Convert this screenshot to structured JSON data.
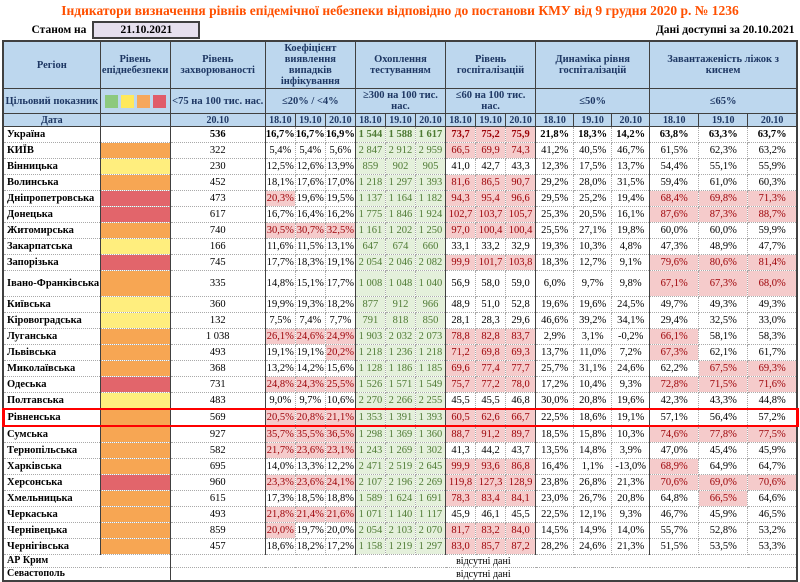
{
  "title": "Індикатори визначення рівнів епідемічної небезпеки відповідно до постанови КМУ від 9 грудня 2020 р. № 1236",
  "meta": {
    "as_of_label": "Станом на",
    "as_of_date": "21.10.2021",
    "available_text": "Дані доступні за  20.10.2021"
  },
  "colors": {
    "title": "#FF5000",
    "header_bg": "#BDD7EE",
    "header_text": "#1F3864",
    "level_orange": "#F7A653",
    "level_yellow": "#FFEE7E",
    "level_red": "#E2656B",
    "exceed_bg": "#F5CBCB",
    "exceed_text": "#9C0006",
    "good_bg": "#E4F0DB",
    "good_text": "#4E7A33",
    "highlight_border": "#FF0000"
  },
  "header": {
    "region_label": "Регіон",
    "target_label": "Цільовий показник",
    "date_label": "Дата",
    "level_group": {
      "name": "Рівень епіднебезпеки",
      "legend_colors": [
        "#8DC97E",
        "#FFE95C",
        "#F6A75C",
        "#E05C6A"
      ],
      "legend_names": [
        "green-level",
        "yellow-level",
        "orange-level",
        "red-level"
      ]
    },
    "groups": [
      {
        "name": "Рівень захворюваності",
        "target": "<75 на 100 тис. нас.",
        "dates": [
          "20.10"
        ]
      },
      {
        "name": "Коефіцієнт виявлення випадків інфікування",
        "target": "≤20% / <4%",
        "dates": [
          "18.10",
          "19.10",
          "20.10"
        ]
      },
      {
        "name": "Охоплення тестуванням",
        "target": "≥300 на 100 тис. нас.",
        "dates": [
          "18.10",
          "19.10",
          "20.10"
        ]
      },
      {
        "name": "Рівень госпіталізацій",
        "target": "≤60 на 100 тис. нас.",
        "dates": [
          "18.10",
          "19.10",
          "20.10"
        ]
      },
      {
        "name": "Динаміка рівня госпіталізацій",
        "target": "≤50%",
        "dates": [
          "18.10",
          "19.10",
          "20.10"
        ]
      },
      {
        "name": "Завантаженість ліжок з киснем",
        "target": "≤65%",
        "dates": [
          "18.10",
          "19.10",
          "20.10"
        ]
      }
    ]
  },
  "highlight_region": "Рівненська",
  "no_data_text": "відсутні дані",
  "rows": [
    {
      "region": "Україна",
      "bold": true,
      "level": "",
      "incidence": "536",
      "coef": [
        "16,7%",
        "16,7%",
        "16,9%"
      ],
      "test": [
        "1 544",
        "1 588",
        "1 617"
      ],
      "hosp": [
        "73,7",
        "75,2",
        "75,9"
      ],
      "hosp_f": "ppp",
      "dyn": [
        "21,8%",
        "18,3%",
        "14,2%"
      ],
      "beds": [
        "63,8%",
        "63,3%",
        "63,7%"
      ]
    },
    {
      "region": "КИЇВ",
      "level": "orange",
      "incidence": "322",
      "coef": [
        "5,4%",
        "5,4%",
        "5,6%"
      ],
      "test": [
        "2 847",
        "2 912",
        "2 959"
      ],
      "hosp": [
        "66,5",
        "69,9",
        "74,3"
      ],
      "hosp_f": "ppp",
      "dyn": [
        "41,2%",
        "40,5%",
        "46,7%"
      ],
      "beds": [
        "61,5%",
        "62,3%",
        "63,2%"
      ]
    },
    {
      "region": "Вінницька",
      "level": "yellow",
      "incidence": "230",
      "coef": [
        "12,5%",
        "12,6%",
        "13,9%"
      ],
      "test": [
        "859",
        "902",
        "905"
      ],
      "hosp": [
        "41,0",
        "42,7",
        "43,3"
      ],
      "dyn": [
        "12,3%",
        "17,5%",
        "13,7%"
      ],
      "beds": [
        "54,4%",
        "55,1%",
        "55,9%"
      ]
    },
    {
      "region": "Волинська",
      "level": "orange",
      "incidence": "452",
      "coef": [
        "18,1%",
        "17,6%",
        "17,0%"
      ],
      "test": [
        "1 218",
        "1 297",
        "1 393"
      ],
      "hosp": [
        "81,6",
        "86,5",
        "90,7"
      ],
      "hosp_f": "ppp",
      "dyn": [
        "29,2%",
        "28,0%",
        "31,5%"
      ],
      "beds": [
        "59,4%",
        "61,0%",
        "60,3%"
      ]
    },
    {
      "region": "Дніпропетровська",
      "level": "red",
      "incidence": "473",
      "coef": [
        "20,3%",
        "19,6%",
        "19,5%"
      ],
      "coef_f": "p..",
      "test": [
        "1 137",
        "1 164",
        "1 182"
      ],
      "hosp": [
        "94,3",
        "95,4",
        "96,6"
      ],
      "hosp_f": "ppp",
      "dyn": [
        "29,5%",
        "25,2%",
        "19,4%"
      ],
      "beds": [
        "68,4%",
        "69,8%",
        "71,3%"
      ],
      "beds_f": "ppp"
    },
    {
      "region": "Донецька",
      "level": "red",
      "incidence": "617",
      "coef": [
        "16,7%",
        "16,4%",
        "16,2%"
      ],
      "test": [
        "1 775",
        "1 846",
        "1 924"
      ],
      "hosp": [
        "102,7",
        "103,7",
        "105,7"
      ],
      "hosp_f": "ppp",
      "dyn": [
        "25,3%",
        "20,5%",
        "16,1%"
      ],
      "beds": [
        "87,6%",
        "87,3%",
        "88,7%"
      ],
      "beds_f": "ppp"
    },
    {
      "region": "Житомирська",
      "level": "orange",
      "incidence": "740",
      "coef": [
        "30,5%",
        "30,7%",
        "32,5%"
      ],
      "coef_f": "ppp",
      "test": [
        "1 161",
        "1 202",
        "1 250"
      ],
      "hosp": [
        "97,0",
        "100,4",
        "100,4"
      ],
      "hosp_f": "ppp",
      "dyn": [
        "25,5%",
        "27,1%",
        "19,8%"
      ],
      "beds": [
        "60,0%",
        "60,0%",
        "59,9%"
      ]
    },
    {
      "region": "Закарпатська",
      "level": "yellow",
      "incidence": "166",
      "coef": [
        "11,6%",
        "11,5%",
        "13,1%"
      ],
      "test": [
        "647",
        "674",
        "660"
      ],
      "hosp": [
        "33,1",
        "33,2",
        "32,9"
      ],
      "dyn": [
        "19,3%",
        "10,3%",
        "4,8%"
      ],
      "beds": [
        "47,3%",
        "48,9%",
        "47,7%"
      ]
    },
    {
      "region": "Запорізька",
      "level": "red",
      "incidence": "745",
      "coef": [
        "17,7%",
        "18,3%",
        "19,1%"
      ],
      "test": [
        "2 054",
        "2 046",
        "2 082"
      ],
      "hosp": [
        "99,9",
        "101,7",
        "103,8"
      ],
      "hosp_f": "ppp",
      "dyn": [
        "18,3%",
        "12,7%",
        "9,1%"
      ],
      "beds": [
        "79,6%",
        "80,6%",
        "81,4%"
      ],
      "beds_f": "ppp"
    },
    {
      "region": "Івано-Франківська",
      "level": "orange",
      "incidence": "335",
      "tall": true,
      "coef": [
        "14,8%",
        "15,1%",
        "17,7%"
      ],
      "test": [
        "1 008",
        "1 048",
        "1 040"
      ],
      "hosp": [
        "56,9",
        "58,0",
        "59,0"
      ],
      "dyn": [
        "6,0%",
        "9,7%",
        "9,8%"
      ],
      "beds": [
        "67,1%",
        "67,3%",
        "68,0%"
      ],
      "beds_f": "ppp"
    },
    {
      "region": "Київська",
      "level": "yellow",
      "incidence": "360",
      "coef": [
        "19,9%",
        "19,3%",
        "18,2%"
      ],
      "test": [
        "877",
        "912",
        "966"
      ],
      "hosp": [
        "48,9",
        "51,0",
        "52,8"
      ],
      "dyn": [
        "19,6%",
        "19,6%",
        "24,5%"
      ],
      "beds": [
        "49,7%",
        "49,3%",
        "49,3%"
      ]
    },
    {
      "region": "Кіровоградська",
      "level": "yellow",
      "incidence": "132",
      "coef": [
        "7,5%",
        "7,4%",
        "7,7%"
      ],
      "test": [
        "791",
        "818",
        "850"
      ],
      "hosp": [
        "28,1",
        "28,3",
        "29,6"
      ],
      "dyn": [
        "46,6%",
        "39,2%",
        "34,1%"
      ],
      "beds": [
        "29,4%",
        "32,5%",
        "33,0%"
      ]
    },
    {
      "region": "Луганська",
      "level": "orange",
      "incidence": "1 038",
      "coef": [
        "26,1%",
        "24,6%",
        "24,9%"
      ],
      "coef_f": "ppp",
      "test": [
        "1 903",
        "2 032",
        "2 073"
      ],
      "hosp": [
        "78,8",
        "82,8",
        "83,7"
      ],
      "hosp_f": "ppp",
      "dyn": [
        "2,9%",
        "3,1%",
        "-0,2%"
      ],
      "beds": [
        "66,1%",
        "58,1%",
        "58,3%"
      ],
      "beds_f": "p.."
    },
    {
      "region": "Львівська",
      "level": "orange",
      "incidence": "493",
      "coef": [
        "19,1%",
        "19,1%",
        "20,2%"
      ],
      "coef_f": "..p",
      "test": [
        "1 218",
        "1 236",
        "1 218"
      ],
      "hosp": [
        "71,2",
        "69,8",
        "69,3"
      ],
      "hosp_f": "ppp",
      "dyn": [
        "13,7%",
        "11,0%",
        "7,2%"
      ],
      "beds": [
        "67,3%",
        "62,1%",
        "61,7%"
      ],
      "beds_f": "p.."
    },
    {
      "region": "Миколаївська",
      "level": "orange",
      "incidence": "368",
      "coef": [
        "13,2%",
        "14,2%",
        "15,6%"
      ],
      "test": [
        "1 128",
        "1 186",
        "1 185"
      ],
      "hosp": [
        "69,6",
        "77,4",
        "77,7"
      ],
      "hosp_f": "ppp",
      "dyn": [
        "25,7%",
        "31,1%",
        "24,6%"
      ],
      "beds": [
        "62,2%",
        "67,5%",
        "69,3%"
      ],
      "beds_f": ".pp"
    },
    {
      "region": "Одеська",
      "level": "red",
      "incidence": "731",
      "coef": [
        "24,8%",
        "24,3%",
        "25,5%"
      ],
      "coef_f": "ppp",
      "test": [
        "1 526",
        "1 571",
        "1 549"
      ],
      "hosp": [
        "75,7",
        "77,2",
        "78,0"
      ],
      "hosp_f": "ppp",
      "dyn": [
        "17,2%",
        "10,4%",
        "9,3%"
      ],
      "beds": [
        "72,8%",
        "71,5%",
        "71,6%"
      ],
      "beds_f": "ppp"
    },
    {
      "region": "Полтавська",
      "level": "yellow",
      "incidence": "483",
      "coef": [
        "9,0%",
        "9,7%",
        "10,6%"
      ],
      "test": [
        "2 270",
        "2 266",
        "2 255"
      ],
      "hosp": [
        "45,5",
        "45,5",
        "46,8"
      ],
      "dyn": [
        "30,0%",
        "20,8%",
        "19,6%"
      ],
      "beds": [
        "42,3%",
        "43,3%",
        "44,8%"
      ]
    },
    {
      "region": "Рівненська",
      "level": "orange",
      "incidence": "569",
      "coef": [
        "20,5%",
        "20,8%",
        "21,1%"
      ],
      "coef_f": "ppp",
      "test": [
        "1 353",
        "1 391",
        "1 393"
      ],
      "hosp": [
        "60,5",
        "62,6",
        "66,7"
      ],
      "hosp_f": "ppp",
      "dyn": [
        "22,5%",
        "18,6%",
        "19,1%"
      ],
      "beds": [
        "57,1%",
        "56,4%",
        "57,2%"
      ]
    },
    {
      "region": "Сумська",
      "level": "orange",
      "incidence": "927",
      "coef": [
        "35,7%",
        "35,5%",
        "36,5%"
      ],
      "coef_f": "ppp",
      "test": [
        "1 298",
        "1 369",
        "1 360"
      ],
      "hosp": [
        "88,7",
        "91,2",
        "89,7"
      ],
      "hosp_f": "ppp",
      "dyn": [
        "18,5%",
        "15,8%",
        "10,3%"
      ],
      "beds": [
        "74,6%",
        "77,8%",
        "77,5%"
      ],
      "beds_f": "ppp"
    },
    {
      "region": "Тернопільська",
      "level": "orange",
      "incidence": "582",
      "coef": [
        "21,7%",
        "23,6%",
        "23,1%"
      ],
      "coef_f": "ppp",
      "test": [
        "1 243",
        "1 269",
        "1 302"
      ],
      "hosp": [
        "41,3",
        "44,2",
        "43,7"
      ],
      "dyn": [
        "13,5%",
        "14,8%",
        "3,9%"
      ],
      "beds": [
        "47,0%",
        "45,4%",
        "45,9%"
      ]
    },
    {
      "region": "Харківська",
      "level": "orange",
      "incidence": "695",
      "coef": [
        "14,0%",
        "13,3%",
        "12,2%"
      ],
      "test": [
        "2 471",
        "2 519",
        "2 645"
      ],
      "hosp": [
        "99,9",
        "93,6",
        "86,8"
      ],
      "hosp_f": "ppp",
      "dyn": [
        "16,4%",
        "1,1%",
        "-13,0%"
      ],
      "beds": [
        "68,9%",
        "64,9%",
        "64,7%"
      ],
      "beds_f": "p.."
    },
    {
      "region": "Херсонська",
      "level": "red",
      "incidence": "960",
      "coef": [
        "23,3%",
        "23,6%",
        "24,1%"
      ],
      "coef_f": "ppp",
      "test": [
        "2 107",
        "2 196",
        "2 269"
      ],
      "hosp": [
        "119,8",
        "127,3",
        "128,9"
      ],
      "hosp_f": "ppp",
      "dyn": [
        "23,8%",
        "26,8%",
        "21,3%"
      ],
      "beds": [
        "70,6%",
        "69,0%",
        "70,6%"
      ],
      "beds_f": "ppp"
    },
    {
      "region": "Хмельницька",
      "level": "orange",
      "incidence": "615",
      "coef": [
        "17,3%",
        "18,5%",
        "18,8%"
      ],
      "test": [
        "1 589",
        "1 624",
        "1 691"
      ],
      "hosp": [
        "78,3",
        "83,4",
        "84,1"
      ],
      "hosp_f": "ppp",
      "dyn": [
        "23,0%",
        "26,7%",
        "20,8%"
      ],
      "beds": [
        "64,8%",
        "66,5%",
        "64,6%"
      ],
      "beds_f": ".p."
    },
    {
      "region": "Черкаська",
      "level": "orange",
      "incidence": "493",
      "coef": [
        "21,8%",
        "21,4%",
        "21,6%"
      ],
      "coef_f": "ppp",
      "test": [
        "1 071",
        "1 140",
        "1 117"
      ],
      "hosp": [
        "45,9",
        "46,1",
        "45,5"
      ],
      "dyn": [
        "22,5%",
        "12,1%",
        "9,3%"
      ],
      "beds": [
        "46,7%",
        "45,9%",
        "46,5%"
      ]
    },
    {
      "region": "Чернівецька",
      "level": "orange",
      "incidence": "859",
      "coef": [
        "20,0%",
        "19,7%",
        "20,0%"
      ],
      "coef_f": "p..",
      "test": [
        "2 054",
        "2 103",
        "2 070"
      ],
      "hosp": [
        "81,7",
        "83,2",
        "84,0"
      ],
      "hosp_f": "ppp",
      "dyn": [
        "14,5%",
        "14,9%",
        "14,0%"
      ],
      "beds": [
        "55,7%",
        "52,8%",
        "53,2%"
      ]
    },
    {
      "region": "Чернігівська",
      "level": "orange",
      "incidence": "457",
      "coef": [
        "18,6%",
        "18,2%",
        "17,2%"
      ],
      "test": [
        "1 158",
        "1 219",
        "1 297"
      ],
      "hosp": [
        "83,0",
        "85,7",
        "87,2"
      ],
      "hosp_f": "ppp",
      "dyn": [
        "28,2%",
        "24,6%",
        "21,3%"
      ],
      "beds": [
        "51,5%",
        "53,5%",
        "53,3%"
      ]
    }
  ],
  "no_data_rows": [
    {
      "region": "АР Крим"
    },
    {
      "region": "Севастополь"
    }
  ]
}
